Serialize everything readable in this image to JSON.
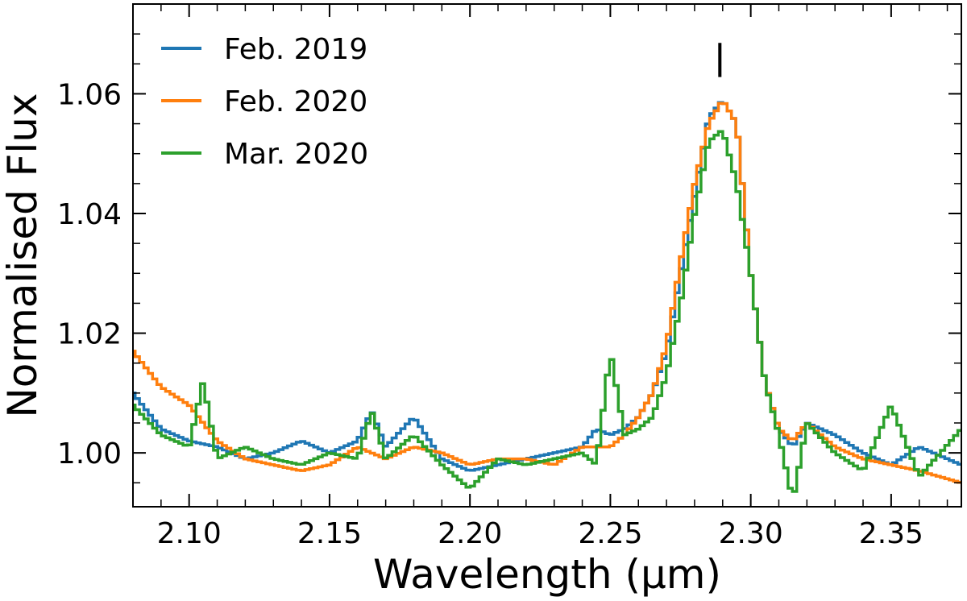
{
  "chart_data": {
    "type": "line",
    "drawstyle": "steps-mid",
    "title": "",
    "xlabel": "Wavelength (μm)",
    "ylabel": "Normalised Flux",
    "xlim": [
      2.08,
      2.375
    ],
    "ylim": [
      0.991,
      1.075
    ],
    "xticks": [
      2.1,
      2.15,
      2.2,
      2.25,
      2.3,
      2.35
    ],
    "xtick_labels": [
      "2.10",
      "2.15",
      "2.20",
      "2.25",
      "2.30",
      "2.35"
    ],
    "yticks": [
      1.0,
      1.02,
      1.04,
      1.06
    ],
    "ytick_labels": [
      "1.00",
      "1.02",
      "1.04",
      "1.06"
    ],
    "grid": false,
    "legend_position": "top-left",
    "annotations": [
      {
        "type": "vertical-marker",
        "x": 2.289,
        "y_range": [
          1.0628,
          1.0685
        ]
      }
    ],
    "series": [
      {
        "name": "Feb. 2019",
        "label": "Feb. 2019",
        "color": "#1f77b4",
        "x": [
          2.08,
          2.09,
          2.1,
          2.11,
          2.12,
          2.13,
          2.14,
          2.15,
          2.16,
          2.165,
          2.17,
          2.18,
          2.19,
          2.2,
          2.21,
          2.22,
          2.23,
          2.24,
          2.245,
          2.25,
          2.255,
          2.26,
          2.265,
          2.27,
          2.275,
          2.28,
          2.285,
          2.29,
          2.295,
          2.3,
          2.305,
          2.31,
          2.315,
          2.32,
          2.33,
          2.34,
          2.35,
          2.36,
          2.375
        ],
        "y": [
          1.01,
          1.004,
          1.002,
          1.001,
          0.999,
          1.0,
          1.002,
          1.0,
          1.002,
          1.007,
          1.001,
          1.006,
          0.999,
          0.997,
          0.998,
          0.999,
          1.0,
          1.001,
          1.004,
          1.003,
          1.004,
          1.006,
          1.01,
          1.017,
          1.03,
          1.043,
          1.056,
          1.059,
          1.055,
          1.03,
          1.012,
          1.004,
          1.001,
          1.005,
          1.003,
          1.0,
          0.998,
          1.001,
          0.998
        ]
      },
      {
        "name": "Feb. 2020",
        "label": "Feb. 2020",
        "color": "#ff7f0e",
        "x": [
          2.08,
          2.09,
          2.1,
          2.11,
          2.12,
          2.13,
          2.14,
          2.15,
          2.16,
          2.17,
          2.18,
          2.19,
          2.2,
          2.21,
          2.22,
          2.23,
          2.24,
          2.25,
          2.255,
          2.26,
          2.265,
          2.27,
          2.275,
          2.28,
          2.285,
          2.29,
          2.295,
          2.3,
          2.305,
          2.31,
          2.315,
          2.32,
          2.33,
          2.34,
          2.35,
          2.36,
          2.375
        ],
        "y": [
          1.017,
          1.011,
          1.008,
          1.002,
          0.999,
          0.998,
          0.997,
          0.998,
          1.001,
          0.999,
          1.001,
          1.0,
          0.998,
          0.999,
          0.999,
          0.998,
          1.001,
          1.001,
          1.003,
          1.006,
          1.01,
          1.018,
          1.032,
          1.045,
          1.055,
          1.059,
          1.055,
          1.03,
          1.012,
          1.004,
          1.002,
          1.005,
          1.001,
          0.999,
          0.998,
          0.997,
          0.995
        ]
      },
      {
        "name": "Mar. 2020",
        "label": "Mar. 2020",
        "color": "#2ca02c",
        "x": [
          2.08,
          2.09,
          2.1,
          2.105,
          2.11,
          2.12,
          2.13,
          2.14,
          2.15,
          2.16,
          2.165,
          2.17,
          2.18,
          2.19,
          2.2,
          2.21,
          2.22,
          2.23,
          2.24,
          2.245,
          2.25,
          2.255,
          2.26,
          2.265,
          2.27,
          2.275,
          2.28,
          2.285,
          2.29,
          2.295,
          2.3,
          2.305,
          2.31,
          2.315,
          2.32,
          2.33,
          2.34,
          2.35,
          2.36,
          2.375
        ],
        "y": [
          1.008,
          1.003,
          1.001,
          1.012,
          0.999,
          1.001,
          0.999,
          0.998,
          1.0,
          0.999,
          1.007,
          0.999,
          1.003,
          0.998,
          0.994,
          0.999,
          0.998,
          0.999,
          1.0,
          0.998,
          1.017,
          1.003,
          1.004,
          1.006,
          1.013,
          1.025,
          1.04,
          1.052,
          1.054,
          1.045,
          1.03,
          1.012,
          1.003,
          0.992,
          1.005,
          1.0,
          0.997,
          1.008,
          0.996,
          1.004
        ]
      }
    ]
  }
}
